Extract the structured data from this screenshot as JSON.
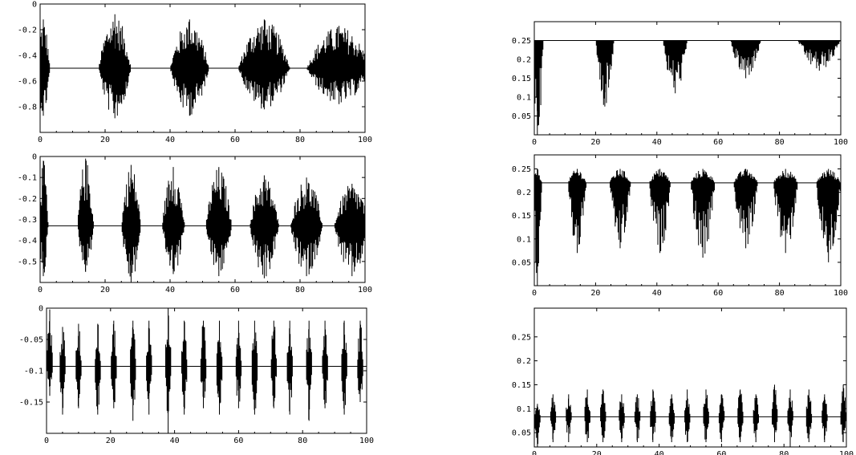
{
  "chart_data": [
    {
      "id": "left-1",
      "type": "line",
      "title": "",
      "xlabel": "",
      "ylabel": "",
      "xlim": [
        0,
        100
      ],
      "ylim": [
        -1.0,
        0.0
      ],
      "x_ticks": [
        0,
        20,
        40,
        60,
        80,
        100
      ],
      "y_ticks": [
        0,
        -0.2,
        -0.4,
        -0.6,
        -0.8
      ],
      "y_tick_labels": [
        "0",
        "-0.2",
        "-0.4",
        "-0.6",
        "-0.8"
      ],
      "x_tick_labels": [
        "0",
        "20",
        "40",
        "60",
        "80",
        "100"
      ],
      "baseline": -0.5,
      "bursts": [
        {
          "center": 1,
          "width": 2,
          "min": -0.87,
          "max": -0.12
        },
        {
          "center": 23,
          "width": 5,
          "min": -0.89,
          "max": -0.08
        },
        {
          "center": 46,
          "width": 6,
          "min": -0.87,
          "max": -0.12
        },
        {
          "center": 69,
          "width": 8,
          "min": -0.82,
          "max": -0.12
        },
        {
          "center": 92,
          "width": 10,
          "min": -0.78,
          "max": -0.17
        }
      ]
    },
    {
      "id": "right-1",
      "type": "line",
      "title": "",
      "xlabel": "",
      "ylabel": "",
      "xlim": [
        0,
        100
      ],
      "ylim": [
        0.0,
        0.3
      ],
      "x_ticks": [
        0,
        20,
        40,
        60,
        80,
        100
      ],
      "y_ticks": [
        0.05,
        0.1,
        0.15,
        0.2,
        0.25
      ],
      "y_tick_labels": [
        "0.05",
        "0.1",
        "0.15",
        "0.2",
        "0.25"
      ],
      "x_tick_labels": [
        "0",
        "20",
        "40",
        "60",
        "80",
        "100"
      ],
      "baseline": 0.25,
      "bursts": [
        {
          "center": 1,
          "width": 2,
          "min": 0.0,
          "max": 0.25
        },
        {
          "center": 23,
          "width": 3,
          "min": 0.075,
          "max": 0.25
        },
        {
          "center": 46,
          "width": 4,
          "min": 0.11,
          "max": 0.25
        },
        {
          "center": 69,
          "width": 5,
          "min": 0.15,
          "max": 0.25
        },
        {
          "center": 93,
          "width": 7,
          "min": 0.17,
          "max": 0.25
        }
      ]
    },
    {
      "id": "left-2",
      "type": "line",
      "title": "",
      "xlabel": "",
      "ylabel": "",
      "xlim": [
        0,
        100
      ],
      "ylim": [
        -0.6,
        0.0
      ],
      "x_ticks": [
        0,
        20,
        40,
        60,
        80,
        100
      ],
      "y_ticks": [
        0,
        -0.1,
        -0.2,
        -0.3,
        -0.4,
        -0.5
      ],
      "y_tick_labels": [
        "0",
        "-0.1",
        "-0.2",
        "-0.3",
        "-0.4",
        "-0.5"
      ],
      "x_tick_labels": [
        "0",
        "20",
        "40",
        "60",
        "80",
        "100"
      ],
      "baseline": -0.33,
      "bursts": [
        {
          "center": 1,
          "width": 1.5,
          "min": -0.57,
          "max": -0.02
        },
        {
          "center": 14,
          "width": 2.5,
          "min": -0.55,
          "max": -0.01
        },
        {
          "center": 28,
          "width": 3,
          "min": -0.6,
          "max": -0.04
        },
        {
          "center": 41,
          "width": 3.5,
          "min": -0.56,
          "max": -0.05
        },
        {
          "center": 55,
          "width": 4,
          "min": -0.57,
          "max": -0.05
        },
        {
          "center": 69,
          "width": 4.5,
          "min": -0.58,
          "max": -0.09
        },
        {
          "center": 82,
          "width": 5,
          "min": -0.57,
          "max": -0.1
        },
        {
          "center": 96,
          "width": 5.5,
          "min": -0.57,
          "max": -0.13
        }
      ]
    },
    {
      "id": "right-2",
      "type": "line",
      "title": "",
      "xlabel": "",
      "ylabel": "",
      "xlim": [
        0,
        100
      ],
      "ylim": [
        0.0,
        0.28
      ],
      "x_ticks": [
        0,
        20,
        40,
        60,
        80,
        100
      ],
      "y_ticks": [
        0.05,
        0.1,
        0.15,
        0.2,
        0.25
      ],
      "y_tick_labels": [
        "0.05",
        "0.1",
        "0.15",
        "0.2",
        "0.25"
      ],
      "x_tick_labels": [
        "0",
        "20",
        "40",
        "60",
        "80",
        "100"
      ],
      "baseline": 0.22,
      "bursts": [
        {
          "center": 1,
          "width": 1.5,
          "min": 0.0,
          "max": 0.25
        },
        {
          "center": 14,
          "width": 3,
          "min": 0.07,
          "max": 0.25
        },
        {
          "center": 28,
          "width": 3.5,
          "min": 0.08,
          "max": 0.25
        },
        {
          "center": 41,
          "width": 3.5,
          "min": 0.07,
          "max": 0.25
        },
        {
          "center": 55,
          "width": 4,
          "min": 0.06,
          "max": 0.25
        },
        {
          "center": 69,
          "width": 4,
          "min": 0.08,
          "max": 0.25
        },
        {
          "center": 82,
          "width": 4,
          "min": 0.07,
          "max": 0.25
        },
        {
          "center": 96,
          "width": 4,
          "min": 0.05,
          "max": 0.25
        }
      ]
    },
    {
      "id": "left-3",
      "type": "line",
      "title": "",
      "xlabel": "",
      "ylabel": "",
      "xlim": [
        0,
        100
      ],
      "ylim": [
        -0.2,
        0.0
      ],
      "x_ticks": [
        0,
        20,
        40,
        60,
        80,
        100
      ],
      "y_ticks": [
        0,
        -0.05,
        -0.1,
        -0.15
      ],
      "y_tick_labels": [
        "0",
        "-0.05",
        "-0.1",
        "-0.15"
      ],
      "x_tick_labels": [
        "0",
        "20",
        "40",
        "60",
        "80",
        "100"
      ],
      "baseline": -0.093,
      "bursts": [
        {
          "center": 1,
          "width": 1,
          "min": -0.14,
          "max": -0.002
        },
        {
          "center": 5,
          "width": 1,
          "min": -0.17,
          "max": -0.03
        },
        {
          "center": 10,
          "width": 1,
          "min": -0.16,
          "max": -0.025
        },
        {
          "center": 16,
          "width": 1,
          "min": -0.17,
          "max": -0.025
        },
        {
          "center": 21,
          "width": 1,
          "min": -0.16,
          "max": -0.02
        },
        {
          "center": 27,
          "width": 1,
          "min": -0.18,
          "max": -0.02
        },
        {
          "center": 32,
          "width": 1,
          "min": -0.17,
          "max": -0.02
        },
        {
          "center": 38,
          "width": 1,
          "min": -0.2,
          "max": 0.0
        },
        {
          "center": 43,
          "width": 1,
          "min": -0.17,
          "max": -0.02
        },
        {
          "center": 49,
          "width": 1,
          "min": -0.16,
          "max": -0.02
        },
        {
          "center": 54,
          "width": 1,
          "min": -0.17,
          "max": -0.02
        },
        {
          "center": 60,
          "width": 1,
          "min": -0.16,
          "max": -0.02
        },
        {
          "center": 65,
          "width": 1,
          "min": -0.17,
          "max": -0.02
        },
        {
          "center": 71,
          "width": 1,
          "min": -0.16,
          "max": -0.02
        },
        {
          "center": 76,
          "width": 1,
          "min": -0.17,
          "max": -0.02
        },
        {
          "center": 82,
          "width": 1,
          "min": -0.18,
          "max": -0.02
        },
        {
          "center": 87,
          "width": 1,
          "min": -0.16,
          "max": -0.02
        },
        {
          "center": 93,
          "width": 1,
          "min": -0.17,
          "max": -0.02
        },
        {
          "center": 98,
          "width": 1,
          "min": -0.15,
          "max": -0.02
        }
      ]
    },
    {
      "id": "right-3",
      "type": "line",
      "title": "",
      "xlabel": "",
      "ylabel": "",
      "xlim": [
        0,
        100
      ],
      "ylim": [
        0.02,
        0.31
      ],
      "x_ticks": [
        0,
        20,
        40,
        60,
        80,
        100
      ],
      "y_ticks": [
        0.05,
        0.1,
        0.15,
        0.2,
        0.25
      ],
      "y_tick_labels": [
        "0.05",
        "0.1",
        "0.15",
        "0.2",
        "0.25"
      ],
      "x_tick_labels": [
        "0",
        "20",
        "40",
        "60",
        "80",
        "100"
      ],
      "baseline": 0.083,
      "bursts": [
        {
          "center": 1,
          "width": 1,
          "min": 0.02,
          "max": 0.11
        },
        {
          "center": 6,
          "width": 1,
          "min": 0.03,
          "max": 0.13
        },
        {
          "center": 11,
          "width": 1,
          "min": 0.03,
          "max": 0.13
        },
        {
          "center": 17,
          "width": 1,
          "min": 0.03,
          "max": 0.14
        },
        {
          "center": 22,
          "width": 1,
          "min": 0.03,
          "max": 0.14
        },
        {
          "center": 28,
          "width": 1,
          "min": 0.03,
          "max": 0.13
        },
        {
          "center": 33,
          "width": 1,
          "min": 0.03,
          "max": 0.13
        },
        {
          "center": 38,
          "width": 1,
          "min": 0.03,
          "max": 0.14
        },
        {
          "center": 44,
          "width": 1,
          "min": 0.03,
          "max": 0.13
        },
        {
          "center": 49,
          "width": 1,
          "min": 0.03,
          "max": 0.14
        },
        {
          "center": 55,
          "width": 1,
          "min": 0.03,
          "max": 0.14
        },
        {
          "center": 60,
          "width": 1,
          "min": 0.03,
          "max": 0.13
        },
        {
          "center": 66,
          "width": 1,
          "min": 0.03,
          "max": 0.14
        },
        {
          "center": 71,
          "width": 1,
          "min": 0.03,
          "max": 0.13
        },
        {
          "center": 77,
          "width": 1,
          "min": 0.03,
          "max": 0.15
        },
        {
          "center": 82,
          "width": 1,
          "min": 0.02,
          "max": 0.14
        },
        {
          "center": 88,
          "width": 1,
          "min": 0.03,
          "max": 0.14
        },
        {
          "center": 93,
          "width": 1,
          "min": 0.03,
          "max": 0.13
        },
        {
          "center": 99,
          "width": 1,
          "min": 0.03,
          "max": 0.15
        }
      ]
    }
  ]
}
